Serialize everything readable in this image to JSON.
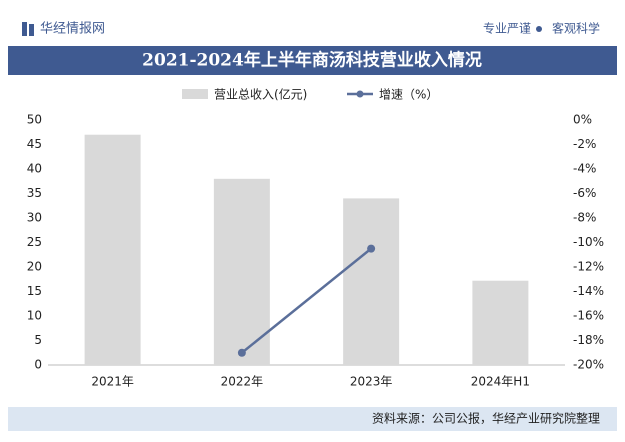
{
  "header": {
    "brand": "华经情报网",
    "slogan_left": "专业严谨",
    "slogan_right": "客观科学"
  },
  "footer": {
    "source": "资料来源：公司公报，华经产业研究院整理"
  },
  "chart_data": {
    "type": "bar",
    "title": "2021-2024年上半年商汤科技营业收入情况",
    "categories": [
      "2021年",
      "2022年",
      "2023年",
      "2024年H1"
    ],
    "series": [
      {
        "name": "营业总收入(亿元)",
        "type": "bar",
        "color": "#d9d9d9",
        "values": [
          47,
          38,
          34,
          17.2
        ]
      },
      {
        "name": "增速（%）",
        "type": "line",
        "axis": "y2",
        "color": "#5b6f9a",
        "values": [
          null,
          -19,
          -10.5,
          null
        ]
      }
    ],
    "ylim": [
      0,
      50
    ],
    "yticks": [
      0,
      5,
      10,
      15,
      20,
      25,
      30,
      35,
      40,
      45,
      50
    ],
    "y2lim": [
      -20,
      0
    ],
    "y2ticks": [
      {
        "value": 0,
        "label": "0%"
      },
      {
        "value": -2,
        "label": "-2%"
      },
      {
        "value": -4,
        "label": "-4%"
      },
      {
        "value": -6,
        "label": "-6%"
      },
      {
        "value": -8,
        "label": "-8%"
      },
      {
        "value": -10,
        "label": "-10%"
      },
      {
        "value": -12,
        "label": "-12%"
      },
      {
        "value": -14,
        "label": "-14%"
      },
      {
        "value": -16,
        "label": "-16%"
      },
      {
        "value": -18,
        "label": "-18%"
      },
      {
        "value": -20,
        "label": "-20%"
      }
    ]
  }
}
